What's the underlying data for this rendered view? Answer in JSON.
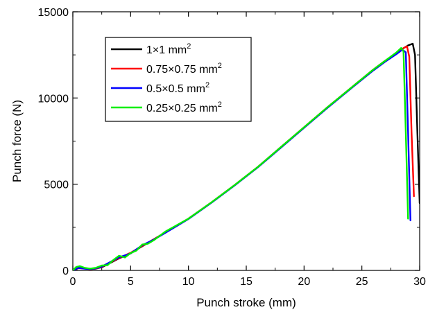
{
  "chart_data": {
    "type": "line",
    "xlabel": "Punch stroke (mm)",
    "ylabel": "Punch force (N)",
    "xlim": [
      0,
      30
    ],
    "ylim": [
      0,
      15000
    ],
    "x_ticks": [
      0,
      5,
      10,
      15,
      20,
      25,
      30
    ],
    "y_ticks": [
      0,
      5000,
      10000,
      15000
    ],
    "grid": false,
    "legend_position": "top-left",
    "series": [
      {
        "name": "1×1 mm",
        "name_superscript": "2",
        "color": "#000000",
        "x": [
          0,
          0.5,
          1,
          1.5,
          2,
          2.5,
          3,
          4,
          5,
          6,
          7,
          8,
          10,
          12,
          14,
          16,
          18,
          20,
          22,
          24,
          26,
          27,
          28,
          28.5,
          29,
          29.4,
          29.6,
          29.8,
          30
        ],
        "y": [
          0,
          150,
          120,
          80,
          100,
          180,
          350,
          700,
          1000,
          1400,
          1800,
          2200,
          3000,
          3950,
          4950,
          6000,
          7150,
          8300,
          9450,
          10550,
          11650,
          12150,
          12600,
          12850,
          13050,
          13150,
          12500,
          8000,
          3900
        ]
      },
      {
        "name": "0.75×0.75 mm",
        "name_superscript": "2",
        "color": "#ff0000",
        "x": [
          0,
          0.5,
          1,
          1.5,
          2,
          2.5,
          3,
          4,
          5,
          6,
          7,
          8,
          10,
          12,
          14,
          16,
          18,
          20,
          22,
          24,
          26,
          27,
          28,
          28.5,
          28.9,
          29.1,
          29.3,
          29.5
        ],
        "y": [
          0,
          130,
          110,
          70,
          110,
          200,
          380,
          720,
          1020,
          1420,
          1800,
          2200,
          3000,
          3950,
          4950,
          6000,
          7150,
          8300,
          9450,
          10550,
          11650,
          12150,
          12600,
          12850,
          13000,
          12400,
          8000,
          4300
        ]
      },
      {
        "name": "0.5×0.5 mm",
        "name_superscript": "2",
        "color": "#0000ff",
        "x": [
          0,
          0.5,
          1,
          1.5,
          2,
          2.5,
          3,
          4,
          5,
          6,
          7,
          8,
          10,
          12,
          14,
          16,
          18,
          20,
          22,
          24,
          26,
          27,
          28,
          28.5,
          28.8,
          29.0,
          29.2
        ],
        "y": [
          0,
          140,
          100,
          80,
          120,
          220,
          400,
          760,
          980,
          1460,
          1780,
          2180,
          2980,
          3930,
          4930,
          5980,
          7120,
          8270,
          9420,
          10520,
          11600,
          12100,
          12550,
          12800,
          12650,
          8000,
          2900
        ]
      },
      {
        "name": "0.25×0.25 mm",
        "name_superscript": "2",
        "color": "#00ee00",
        "x": [
          0,
          0.3,
          0.6,
          1,
          1.5,
          2,
          2.5,
          3,
          3.5,
          4,
          4.5,
          5,
          5.5,
          6,
          6.5,
          7,
          8,
          10,
          12,
          14,
          16,
          18,
          20,
          22,
          24,
          26,
          27,
          28,
          28.4,
          28.6,
          28.8,
          29.0
        ],
        "y": [
          0,
          200,
          250,
          150,
          100,
          150,
          280,
          300,
          600,
          850,
          750,
          1000,
          1150,
          1500,
          1550,
          1750,
          2250,
          3000,
          3950,
          4950,
          6000,
          7150,
          8300,
          9450,
          10550,
          11650,
          12150,
          12650,
          12900,
          12700,
          8000,
          3000
        ]
      }
    ]
  }
}
